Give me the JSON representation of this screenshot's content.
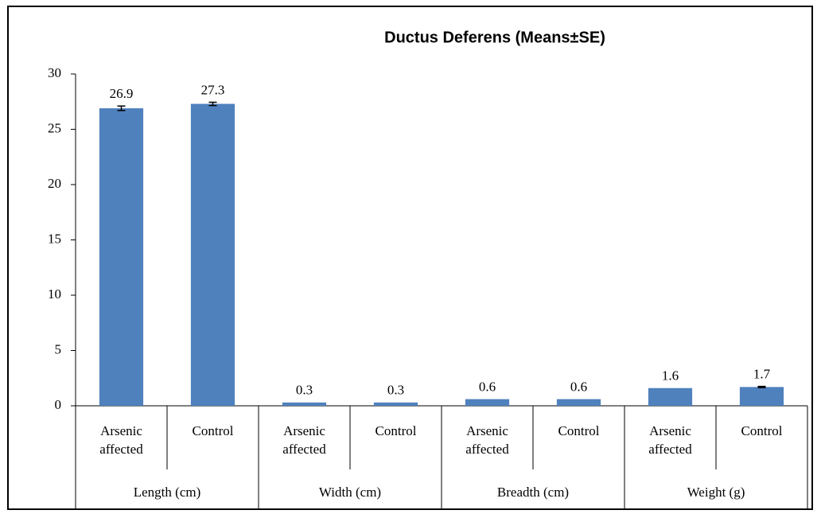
{
  "chart_data": {
    "type": "bar",
    "title": "Ductus Deferens (Means±SE)",
    "categories": [
      "Arsenic affected",
      "Control",
      "Arsenic affected",
      "Control",
      "Arsenic affected",
      "Control",
      "Arsenic affected",
      "Control"
    ],
    "groups": [
      "Length (cm)",
      "Width (cm)",
      "Breadth (cm)",
      "Weight (g)"
    ],
    "values": [
      26.9,
      27.3,
      0.3,
      0.3,
      0.6,
      0.6,
      1.6,
      1.7
    ],
    "errors": [
      0.2,
      0.15,
      null,
      null,
      null,
      null,
      null,
      0.05
    ],
    "color": "#4f81bd",
    "ylim": [
      0,
      30
    ],
    "yticks": [
      0,
      5,
      10,
      15,
      20,
      25,
      30
    ],
    "grid": false
  }
}
